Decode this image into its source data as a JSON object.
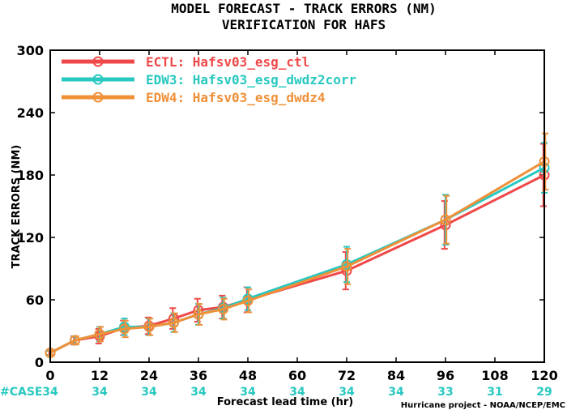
{
  "chart_data": {
    "type": "line",
    "title": "MODEL FORECAST - TRACK ERRORS (NM)",
    "subtitle": "VERIFICATION FOR HAFS",
    "xlabel": "Forecast lead time (hr)",
    "ylabel": "TRACK ERRORS (NM)",
    "xlim": [
      0,
      120
    ],
    "ylim": [
      0,
      300
    ],
    "x_ticks": [
      0,
      12,
      24,
      36,
      48,
      60,
      72,
      84,
      96,
      108,
      120
    ],
    "y_ticks": [
      0,
      60,
      120,
      180,
      240,
      300
    ],
    "y_tick_labels": [
      "0",
      "60",
      "120",
      "180",
      "240",
      "300"
    ],
    "case_label": "#CASE",
    "case_x": [
      0,
      12,
      24,
      36,
      48,
      60,
      72,
      84,
      96,
      108,
      120
    ],
    "case_counts": [
      "34",
      "34",
      "34",
      "34",
      "34",
      "34",
      "34",
      "34",
      "33",
      "31",
      "29"
    ],
    "legend_position": "top-left",
    "credit": "Hurricane project - NOAA/NCEP/EMC",
    "series": [
      {
        "name": "ECTL: Hafsv03_esg_ctl",
        "color": "#f04848",
        "x": [
          0,
          6,
          12,
          18,
          24,
          30,
          36,
          42,
          48,
          72,
          96,
          120
        ],
        "y": [
          9,
          21,
          25,
          33,
          35,
          42,
          50,
          53,
          60,
          88,
          132,
          180
        ],
        "err": [
          2,
          4,
          7,
          7,
          8,
          10,
          11,
          11,
          12,
          18,
          23,
          30
        ]
      },
      {
        "name": "EDW3: Hafsv03_esg_dwdz2corr",
        "color": "#28c8c0",
        "x": [
          0,
          6,
          12,
          18,
          24,
          30,
          36,
          42,
          48,
          72,
          96,
          120
        ],
        "y": [
          9,
          21,
          27,
          34,
          34,
          38,
          46,
          52,
          61,
          94,
          137,
          187
        ],
        "err": [
          2,
          4,
          7,
          8,
          8,
          9,
          10,
          10,
          11,
          17,
          24,
          24
        ]
      },
      {
        "name": "EDW4: Hafsv03_esg_dwdz4",
        "color": "#f09038",
        "x": [
          0,
          6,
          12,
          18,
          24,
          30,
          36,
          42,
          48,
          72,
          96,
          120
        ],
        "y": [
          9,
          21,
          27,
          32,
          34,
          38,
          46,
          51,
          59,
          92,
          137,
          193
        ],
        "err": [
          2,
          4,
          7,
          8,
          8,
          9,
          10,
          10,
          11,
          17,
          23,
          27
        ]
      }
    ]
  }
}
